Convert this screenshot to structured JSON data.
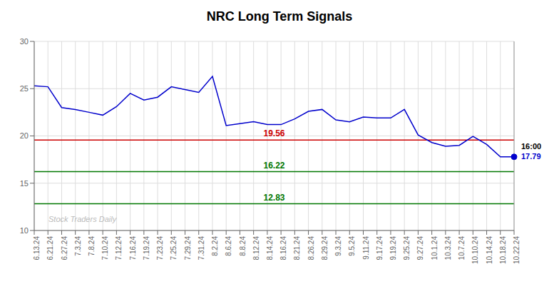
{
  "chart_data": {
    "type": "line",
    "title": "NRC Long Term Signals",
    "categories": [
      "6.13.24",
      "6.21.24",
      "6.27.24",
      "7.3.24",
      "7.8.24",
      "7.10.24",
      "7.12.24",
      "7.16.24",
      "7.19.24",
      "7.23.24",
      "7.25.24",
      "7.29.24",
      "7.31.24",
      "8.2.24",
      "8.6.24",
      "8.8.24",
      "8.12.24",
      "8.14.24",
      "8.16.24",
      "8.21.24",
      "8.26.24",
      "8.29.24",
      "9.3.24",
      "9.5.24",
      "9.11.24",
      "9.17.24",
      "9.19.24",
      "9.25.24",
      "9.27.24",
      "10.1.24",
      "10.3.24",
      "10.7.24",
      "10.10.24",
      "10.14.24",
      "10.18.24",
      "10.22.24"
    ],
    "values": [
      25.3,
      25.2,
      23.0,
      22.8,
      22.5,
      22.2,
      23.1,
      24.5,
      23.8,
      24.1,
      25.2,
      24.9,
      24.6,
      26.3,
      21.1,
      21.3,
      21.5,
      21.2,
      21.2,
      21.8,
      22.6,
      22.8,
      21.7,
      21.5,
      22.0,
      21.9,
      21.9,
      22.8,
      20.1,
      19.3,
      18.9,
      19.0,
      19.95,
      19.1,
      17.79,
      17.79
    ],
    "color": "#0000cc",
    "ylim": [
      10,
      30
    ],
    "yticks": [
      10,
      15,
      20,
      25,
      30
    ],
    "grid": true,
    "reference_lines": [
      {
        "value": 19.56,
        "label": "19.56",
        "color": "#cc0000"
      },
      {
        "value": 16.22,
        "label": "16.22",
        "color": "#007700"
      },
      {
        "value": 12.83,
        "label": "12.83",
        "color": "#007700"
      }
    ],
    "highlight": {
      "category": "10.22.24",
      "value": 17.79,
      "labels": [
        "16:00",
        "17.79"
      ]
    },
    "watermark": "Stock Traders Daily"
  }
}
